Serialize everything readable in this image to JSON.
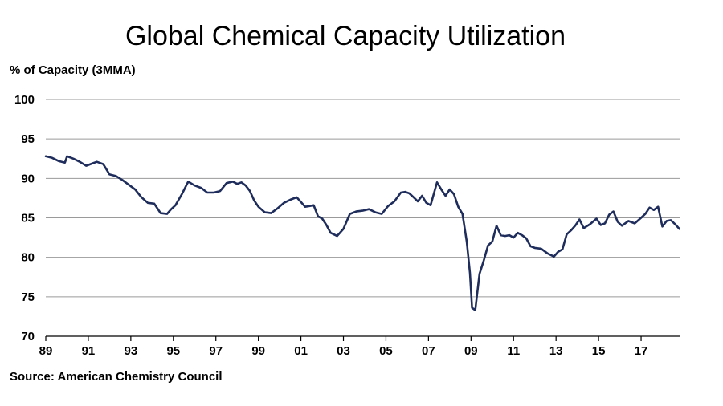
{
  "colors": {
    "series": "#1f2d5c",
    "grid": "#9a9a9a"
  },
  "chart_data": {
    "type": "line",
    "title": "Global Chemical Capacity Utilization",
    "ylabel": "% of Capacity (3MMA)",
    "xlabel": "",
    "source": "Source: American Chemistry Council",
    "ylim": [
      70,
      100
    ],
    "yticks": [
      70,
      75,
      80,
      85,
      90,
      95,
      100
    ],
    "xlim": [
      1989.0,
      2018.85
    ],
    "xticks": [
      {
        "value": 1989,
        "label": "89"
      },
      {
        "value": 1991,
        "label": "91"
      },
      {
        "value": 1993,
        "label": "93"
      },
      {
        "value": 1995,
        "label": "95"
      },
      {
        "value": 1997,
        "label": "97"
      },
      {
        "value": 1999,
        "label": "99"
      },
      {
        "value": 2001,
        "label": "01"
      },
      {
        "value": 2003,
        "label": "03"
      },
      {
        "value": 2005,
        "label": "05"
      },
      {
        "value": 2007,
        "label": "07"
      },
      {
        "value": 2009,
        "label": "09"
      },
      {
        "value": 2011,
        "label": "11"
      },
      {
        "value": 2013,
        "label": "13"
      },
      {
        "value": 2015,
        "label": "15"
      },
      {
        "value": 2017,
        "label": "17"
      }
    ],
    "grid": "horizontal",
    "legend": "none",
    "series": [
      {
        "x": [
          1989.0,
          1989.3,
          1989.6,
          1989.9,
          1990.0,
          1990.3,
          1990.6,
          1990.9,
          1991.2,
          1991.4,
          1991.7,
          1992.0,
          1992.3,
          1992.6,
          1992.9,
          1993.2,
          1993.5,
          1993.8,
          1994.1,
          1994.4,
          1994.7,
          1994.9,
          1995.1,
          1995.4,
          1995.7,
          1996.0,
          1996.3,
          1996.6,
          1996.9,
          1997.2,
          1997.5,
          1997.8,
          1998.0,
          1998.2,
          1998.4,
          1998.6,
          1998.8,
          1999.0,
          1999.3,
          1999.6,
          1999.9,
          2000.2,
          2000.5,
          2000.8,
          2001.0,
          2001.2,
          2001.4,
          2001.6,
          2001.8,
          2002.0,
          2002.2,
          2002.4,
          2002.7,
          2003.0,
          2003.3,
          2003.6,
          2003.9,
          2004.2,
          2004.5,
          2004.8,
          2005.1,
          2005.4,
          2005.7,
          2005.9,
          2006.1,
          2006.3,
          2006.5,
          2006.7,
          2006.9,
          2007.1,
          2007.4,
          2007.6,
          2007.8,
          2008.0,
          2008.2,
          2008.4,
          2008.6,
          2008.8,
          2008.95,
          2009.05,
          2009.2,
          2009.4,
          2009.6,
          2009.8,
          2010.0,
          2010.2,
          2010.4,
          2010.6,
          2010.8,
          2011.0,
          2011.2,
          2011.4,
          2011.6,
          2011.8,
          2012.0,
          2012.3,
          2012.6,
          2012.9,
          2013.1,
          2013.3,
          2013.5,
          2013.7,
          2013.9,
          2014.1,
          2014.3,
          2014.6,
          2014.9,
          2015.1,
          2015.3,
          2015.5,
          2015.7,
          2015.9,
          2016.1,
          2016.4,
          2016.7,
          2017.0,
          2017.2,
          2017.4,
          2017.6,
          2017.8,
          2018.0,
          2018.2,
          2018.4,
          2018.6,
          2018.8
        ],
        "y": [
          92.8,
          92.6,
          92.2,
          92.0,
          92.8,
          92.5,
          92.1,
          91.6,
          91.9,
          92.1,
          91.8,
          90.5,
          90.3,
          89.8,
          89.2,
          88.6,
          87.6,
          86.9,
          86.8,
          85.6,
          85.5,
          86.1,
          86.6,
          88.0,
          89.6,
          89.1,
          88.8,
          88.2,
          88.2,
          88.4,
          89.4,
          89.6,
          89.3,
          89.5,
          89.1,
          88.4,
          87.2,
          86.4,
          85.7,
          85.6,
          86.2,
          86.9,
          87.3,
          87.6,
          87.0,
          86.4,
          86.5,
          86.6,
          85.2,
          84.9,
          84.1,
          83.1,
          82.7,
          83.6,
          85.5,
          85.8,
          85.9,
          86.1,
          85.7,
          85.5,
          86.5,
          87.1,
          88.2,
          88.3,
          88.1,
          87.6,
          87.1,
          87.8,
          86.9,
          86.6,
          89.5,
          88.6,
          87.8,
          88.6,
          88.0,
          86.4,
          85.5,
          82.0,
          78.0,
          73.6,
          73.3,
          77.9,
          79.6,
          81.5,
          82.0,
          84.0,
          82.8,
          82.7,
          82.8,
          82.5,
          83.1,
          82.8,
          82.4,
          81.4,
          81.2,
          81.1,
          80.5,
          80.1,
          80.7,
          81.0,
          82.9,
          83.4,
          84.0,
          84.8,
          83.7,
          84.2,
          84.9,
          84.1,
          84.3,
          85.4,
          85.8,
          84.5,
          84.0,
          84.6,
          84.3,
          85.0,
          85.5,
          86.3,
          86.0,
          86.4,
          83.9,
          84.6,
          84.7,
          84.2,
          83.6
        ]
      }
    ]
  }
}
